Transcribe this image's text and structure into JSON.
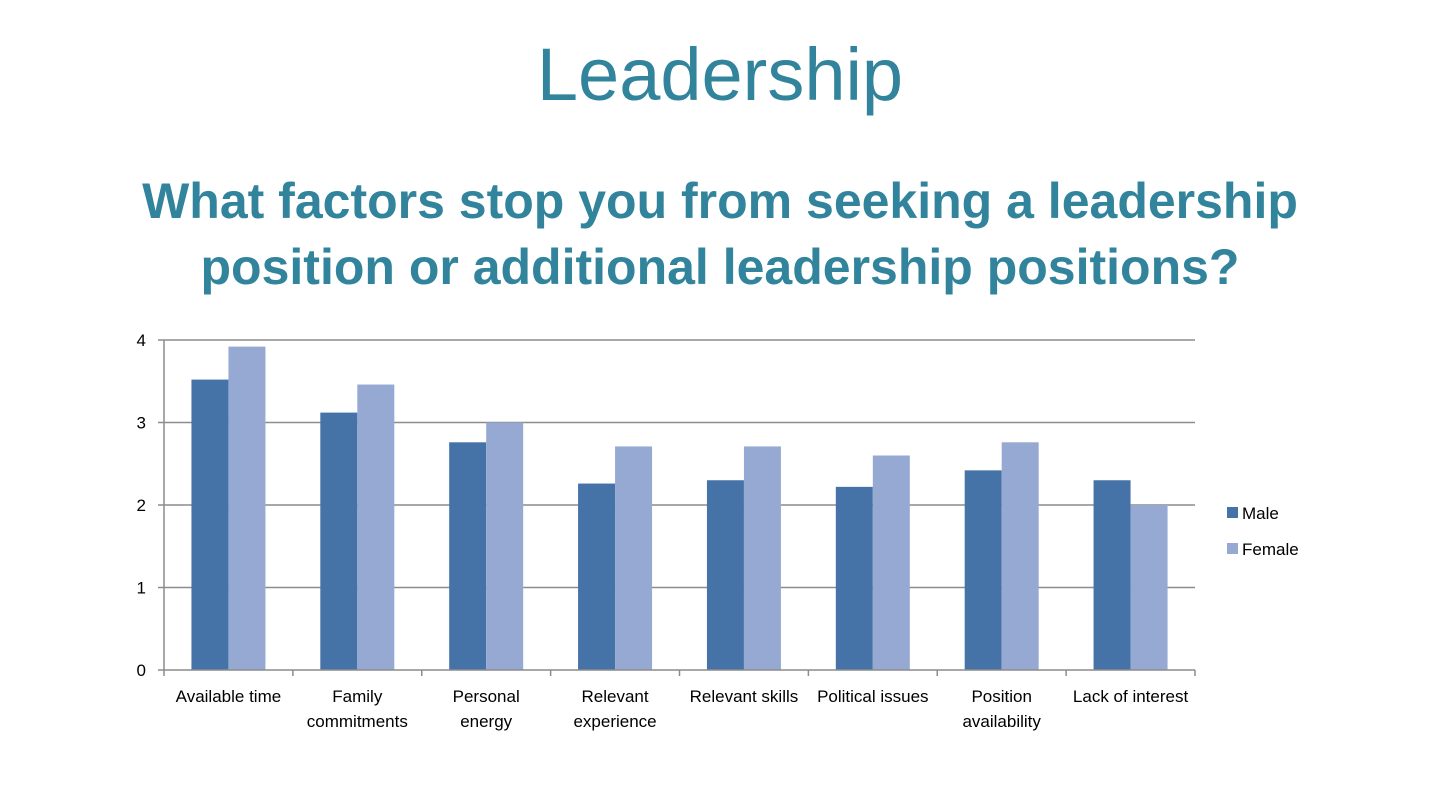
{
  "slide": {
    "title": "Leadership",
    "question": "What factors stop you from seeking a leadership position or additional leadership positions?"
  },
  "chart_data": {
    "type": "bar",
    "categories": [
      [
        "Available time"
      ],
      [
        "Family",
        "commitments"
      ],
      [
        "Personal",
        "energy"
      ],
      [
        "Relevant",
        "experience"
      ],
      [
        "Relevant skills"
      ],
      [
        "Political issues"
      ],
      [
        "Position",
        "availability"
      ],
      [
        "Lack of interest"
      ]
    ],
    "series": [
      {
        "name": "Male",
        "color": "#4572a7",
        "values": [
          3.52,
          3.12,
          2.76,
          2.26,
          2.3,
          2.22,
          2.42,
          2.3
        ]
      },
      {
        "name": "Female",
        "color": "#95a9d3",
        "values": [
          3.92,
          3.46,
          3.0,
          2.71,
          2.71,
          2.6,
          2.76,
          2.0
        ]
      }
    ],
    "ylim": [
      0,
      4
    ],
    "yticks": [
      0,
      1,
      2,
      3,
      4
    ],
    "grid": true,
    "legend_position": "right",
    "gridline_color": "#8c8c8c",
    "axis_color": "#8c8c8c"
  }
}
